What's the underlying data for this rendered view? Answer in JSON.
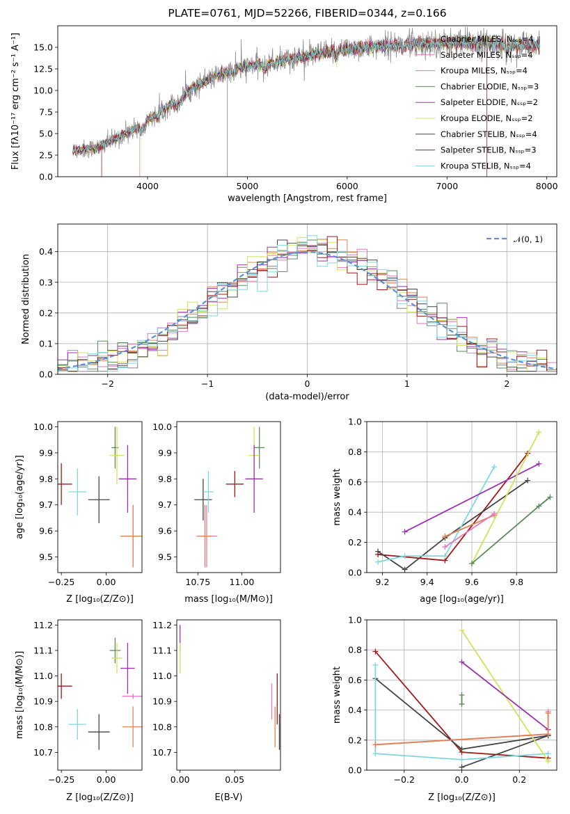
{
  "chart_data": [
    {
      "type": "line",
      "title": "PLATE=0761, MJD=52266, FIBERID=0344, z=0.166",
      "xlabel": "wavelength [Angstrom, rest frame]",
      "ylabel": "Flux [fλ10⁻¹⁷ erg cm⁻² s⁻¹ A⁻¹]",
      "xlim": [
        3100,
        8100
      ],
      "ylim": [
        0,
        17.5
      ],
      "xticks": [
        4000,
        5000,
        6000,
        7000,
        8000
      ],
      "yticks": [
        0.0,
        2.5,
        5.0,
        7.5,
        10.0,
        12.5,
        15.0
      ],
      "grid": false,
      "legend_position": "top-right",
      "series": [
        {
          "name": "Chabrier MILES, Nₛₛₚ=4",
          "color": "#808080"
        },
        {
          "name": "Salpeter MILES, Nₛₛₚ=4",
          "color": "#e377c2"
        },
        {
          "name": "Kroupa MILES, Nₛₛₚ=4",
          "color": "#dd8452"
        },
        {
          "name": "Chabrier ELODIE, Nₛₛₚ=3",
          "color": "#5a8a5a"
        },
        {
          "name": "Salpeter ELODIE, Nₛₛₚ=2",
          "color": "#9b30b0"
        },
        {
          "name": "Kroupa ELODIE, Nₛₛₚ=2",
          "color": "#cfe35a"
        },
        {
          "name": "Chabrier STELIB, Nₛₛₚ=4",
          "color": "#444444"
        },
        {
          "name": "Salpeter STELIB, Nₛₛₚ=3",
          "color": "#a01818"
        },
        {
          "name": "Kroupa STELIB, Nₛₛₚ=4",
          "color": "#7fd6e0"
        }
      ],
      "continuum_shape": {
        "x": [
          3250,
          3500,
          3700,
          3900,
          4100,
          4300,
          4500,
          4700,
          4900,
          5100,
          5300,
          5500,
          5700,
          5900,
          6100,
          6300,
          6500,
          6700,
          6900,
          7100,
          7300,
          7500,
          7700,
          7900
        ],
        "y": [
          3.0,
          3.4,
          4.5,
          5.8,
          7.3,
          9.0,
          10.6,
          11.7,
          12.5,
          13.0,
          13.4,
          13.8,
          14.2,
          14.6,
          14.9,
          15.1,
          15.3,
          15.4,
          15.5,
          15.5,
          15.5,
          15.4,
          15.3,
          15.2
        ]
      }
    },
    {
      "type": "step",
      "xlabel": "(data-model)/error",
      "ylabel": "Normed distribution",
      "xlim": [
        -2.5,
        2.5
      ],
      "ylim": [
        0,
        0.49
      ],
      "xticks": [
        -2,
        -1,
        0,
        1,
        2
      ],
      "yticks": [
        0.0,
        0.1,
        0.2,
        0.3,
        0.4
      ],
      "grid": true,
      "legend_position": "top-right",
      "reference_curve": {
        "name": "𝒩(0, 1)",
        "color": "#5b8fd6",
        "style": "dashed"
      },
      "bin_width": 0.1,
      "series_colors": [
        "#808080",
        "#e377c2",
        "#dd8452",
        "#5a8a5a",
        "#9b30b0",
        "#cfe35a",
        "#444444",
        "#a01818",
        "#7fd6e0"
      ]
    },
    {
      "type": "scatter",
      "xlabel": "Z [log₁₀(Z/Z⊙)]",
      "ylabel": "age  [log₁₀(age/yr)]",
      "xlim": [
        -0.27,
        0.2
      ],
      "ylim": [
        9.44,
        10.02
      ],
      "xticks": [
        -0.25,
        0.0
      ],
      "yticks": [
        9.5,
        9.6,
        9.7,
        9.8,
        9.9,
        10.0
      ],
      "points": [
        {
          "x": -0.25,
          "y": 9.78,
          "xerr": 0.06,
          "yerr": 0.08,
          "color": "#a01818"
        },
        {
          "x": -0.16,
          "y": 9.75,
          "xerr": 0.05,
          "yerr": 0.09,
          "color": "#7fd6e0"
        },
        {
          "x": -0.04,
          "y": 9.72,
          "xerr": 0.06,
          "yerr": 0.09,
          "color": "#444444"
        },
        {
          "x": 0.05,
          "y": 9.92,
          "xerr": 0.02,
          "yerr": 0.08,
          "color": "#5a8a5a"
        },
        {
          "x": 0.06,
          "y": 9.89,
          "xerr": 0.04,
          "yerr": 0.11,
          "color": "#cfe35a"
        },
        {
          "x": 0.12,
          "y": 9.8,
          "xerr": 0.05,
          "yerr": 0.13,
          "color": "#9b30b0"
        },
        {
          "x": 0.15,
          "y": 9.58,
          "xerr": 0.07,
          "yerr": 0.12,
          "color": "#e377c2"
        },
        {
          "x": 0.15,
          "y": 9.58,
          "xerr": 0.07,
          "yerr": 0.12,
          "color": "#dd8452"
        }
      ]
    },
    {
      "type": "scatter",
      "xlabel": "mass [log₁₀(M/M⊙)]",
      "ylabel": "",
      "xlim": [
        10.63,
        11.22
      ],
      "ylim": [
        9.44,
        10.02
      ],
      "xticks": [
        10.75,
        11.0
      ],
      "yticks": [
        9.5,
        9.6,
        9.7,
        9.8,
        9.9,
        10.0
      ],
      "points": [
        {
          "x": 10.78,
          "y": 9.72,
          "xerr": 0.05,
          "yerr": 0.08,
          "color": "#444444"
        },
        {
          "x": 10.81,
          "y": 9.75,
          "xerr": 0.03,
          "yerr": 0.08,
          "color": "#7fd6e0"
        },
        {
          "x": 10.8,
          "y": 9.58,
          "xerr": 0.06,
          "yerr": 0.12,
          "color": "#e377c2"
        },
        {
          "x": 10.79,
          "y": 9.58,
          "xerr": 0.04,
          "yerr": 0.12,
          "color": "#dd8452"
        },
        {
          "x": 10.96,
          "y": 9.78,
          "xerr": 0.05,
          "yerr": 0.05,
          "color": "#a01818"
        },
        {
          "x": 11.1,
          "y": 9.92,
          "xerr": 0.03,
          "yerr": 0.08,
          "color": "#5a8a5a"
        },
        {
          "x": 11.07,
          "y": 9.89,
          "xerr": 0.03,
          "yerr": 0.11,
          "color": "#cfe35a"
        },
        {
          "x": 11.07,
          "y": 9.8,
          "xerr": 0.05,
          "yerr": 0.13,
          "color": "#9b30b0"
        }
      ]
    },
    {
      "type": "line",
      "xlabel": "age  [log₁₀(age/yr)]",
      "ylabel": "mass weight",
      "xlim": [
        9.13,
        9.98
      ],
      "ylim": [
        0,
        1.0
      ],
      "xticks": [
        9.2,
        9.4,
        9.6,
        9.8
      ],
      "yticks": [
        0.0,
        0.2,
        0.4,
        0.6,
        0.8,
        1.0
      ],
      "grid": true,
      "series": [
        {
          "color": "#a01818",
          "x": [
            9.18,
            9.48,
            9.85
          ],
          "y": [
            0.12,
            0.08,
            0.79
          ]
        },
        {
          "color": "#444444",
          "x": [
            9.18,
            9.3,
            9.48,
            9.85
          ],
          "y": [
            0.14,
            0.02,
            0.23,
            0.61
          ]
        },
        {
          "color": "#7fd6e0",
          "x": [
            9.18,
            9.3,
            9.48,
            9.7
          ],
          "y": [
            0.07,
            0.11,
            0.11,
            0.7
          ]
        },
        {
          "color": "#9b30b0",
          "x": [
            9.3,
            9.9
          ],
          "y": [
            0.27,
            0.72
          ]
        },
        {
          "color": "#cfe35a",
          "x": [
            9.6,
            9.9
          ],
          "y": [
            0.06,
            0.93
          ]
        },
        {
          "color": "#5a8a5a",
          "x": [
            9.6,
            9.9,
            9.95
          ],
          "y": [
            0.06,
            0.44,
            0.5
          ]
        },
        {
          "color": "#dd8452",
          "x": [
            9.48,
            9.7
          ],
          "y": [
            0.24,
            0.38
          ]
        },
        {
          "color": "#e377c2",
          "x": [
            9.48,
            9.7
          ],
          "y": [
            0.17,
            0.39
          ]
        }
      ]
    },
    {
      "type": "scatter",
      "xlabel": "Z [log₁₀(Z/Z⊙)]",
      "ylabel": "mass [log₁₀(M/M⊙)]",
      "xlim": [
        -0.27,
        0.2
      ],
      "ylim": [
        10.63,
        11.22
      ],
      "xticks": [
        -0.25,
        0.0
      ],
      "yticks": [
        10.7,
        10.8,
        10.9,
        11.0,
        11.1,
        11.2
      ],
      "points": [
        {
          "x": -0.25,
          "y": 10.96,
          "xerr": 0.06,
          "yerr": 0.05,
          "color": "#a01818"
        },
        {
          "x": -0.16,
          "y": 10.81,
          "xerr": 0.05,
          "yerr": 0.06,
          "color": "#7fd6e0"
        },
        {
          "x": -0.04,
          "y": 10.78,
          "xerr": 0.06,
          "yerr": 0.07,
          "color": "#444444"
        },
        {
          "x": 0.05,
          "y": 11.1,
          "xerr": 0.03,
          "yerr": 0.05,
          "color": "#5a8a5a"
        },
        {
          "x": 0.06,
          "y": 11.07,
          "xerr": 0.03,
          "yerr": 0.06,
          "color": "#cfe35a"
        },
        {
          "x": 0.12,
          "y": 11.03,
          "xerr": 0.04,
          "yerr": 0.1,
          "color": "#9b30b0"
        },
        {
          "x": 0.15,
          "y": 10.92,
          "xerr": 0.06,
          "yerr": 0.01,
          "color": "#e377c2"
        },
        {
          "x": 0.15,
          "y": 10.8,
          "xerr": 0.06,
          "yerr": 0.08,
          "color": "#dd8452"
        }
      ]
    },
    {
      "type": "scatter",
      "xlabel": "E(B-V)",
      "ylabel": "",
      "xlim": [
        -0.003,
        0.092
      ],
      "ylim": [
        10.63,
        11.22
      ],
      "xticks": [
        0.0,
        0.05
      ],
      "yticks": [
        10.7,
        10.8,
        10.9,
        11.0,
        11.1,
        11.2
      ],
      "points": [
        {
          "x": 0.0,
          "y": 11.15,
          "xerr": 0,
          "yerr": 0.05,
          "color": "#9b30b0"
        },
        {
          "x": 0.0,
          "y": 11.07,
          "xerr": 0,
          "yerr": 0.06,
          "color": "#cfe35a"
        },
        {
          "x": 0.084,
          "y": 10.9,
          "xerr": 0,
          "yerr": 0.07,
          "color": "#e377c2"
        },
        {
          "x": 0.087,
          "y": 10.8,
          "xerr": 0,
          "yerr": 0.08,
          "color": "#dd8452"
        },
        {
          "x": 0.089,
          "y": 10.91,
          "xerr": 0,
          "yerr": 0.1,
          "color": "#a01818"
        },
        {
          "x": 0.091,
          "y": 10.78,
          "xerr": 0,
          "yerr": 0.07,
          "color": "#444444"
        },
        {
          "x": 0.092,
          "y": 10.76,
          "xerr": 0,
          "yerr": 0.06,
          "color": "#7fd6e0"
        }
      ]
    },
    {
      "type": "line",
      "xlabel": "Z [log₁₀(Z/Z⊙)]",
      "ylabel": "mass weight",
      "xlim": [
        -0.33,
        0.33
      ],
      "ylim": [
        0,
        1.0
      ],
      "xticks": [
        -0.2,
        0.0,
        0.2
      ],
      "yticks": [
        0.0,
        0.2,
        0.4,
        0.6,
        0.8,
        1.0
      ],
      "grid": true,
      "series": [
        {
          "color": "#a01818",
          "x": [
            -0.3,
            0.0,
            0.3
          ],
          "y": [
            0.79,
            0.12,
            0.08
          ]
        },
        {
          "color": "#444444",
          "x": [
            -0.3,
            0.0,
            0.3
          ],
          "y": [
            0.61,
            0.14,
            0.23
          ]
        },
        {
          "color": "#444444",
          "x": [
            0.0,
            0.3
          ],
          "y": [
            0.02,
            0.23
          ]
        },
        {
          "color": "#7fd6e0",
          "x": [
            -0.3,
            -0.3,
            0.0,
            0.3
          ],
          "y": [
            0.7,
            0.11,
            0.07,
            0.11
          ]
        },
        {
          "color": "#cfe35a",
          "x": [
            0.0,
            0.3
          ],
          "y": [
            0.93,
            0.06
          ]
        },
        {
          "color": "#9b30b0",
          "x": [
            0.0,
            0.3
          ],
          "y": [
            0.72,
            0.27
          ]
        },
        {
          "color": "#5a8a5a",
          "x": [
            0.0,
            0.0
          ],
          "y": [
            0.44,
            0.5
          ]
        },
        {
          "color": "#e377c2",
          "x": [
            -0.3,
            0.3,
            0.3
          ],
          "y": [
            0.17,
            0.24,
            0.39
          ]
        },
        {
          "color": "#dd8452",
          "x": [
            -0.3,
            0.3,
            0.3
          ],
          "y": [
            0.17,
            0.24,
            0.38
          ]
        }
      ]
    }
  ]
}
